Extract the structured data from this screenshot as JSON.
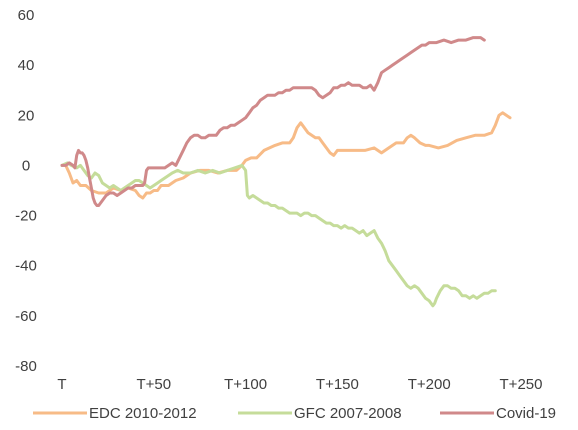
{
  "chart_data": {
    "type": "line",
    "title": "",
    "xlabel": "",
    "ylabel": "",
    "x_range": [
      0,
      250
    ],
    "x_ticks": [
      {
        "x": 0,
        "label": "T"
      },
      {
        "x": 50,
        "label": "T+50"
      },
      {
        "x": 100,
        "label": "T+100"
      },
      {
        "x": 150,
        "label": "T+150"
      },
      {
        "x": 200,
        "label": "T+200"
      },
      {
        "x": 250,
        "label": "T+250"
      }
    ],
    "ylim": [
      -80,
      60
    ],
    "y_ticks": [
      60,
      40,
      20,
      0,
      -20,
      -40,
      -60,
      -80
    ],
    "grid": false,
    "legend_position": "bottom",
    "series": [
      {
        "name": "EDC 2010-2012",
        "color": "#f7bb87",
        "points": [
          [
            0,
            0
          ],
          [
            2,
            0
          ],
          [
            4,
            -3
          ],
          [
            6,
            -7
          ],
          [
            8,
            -6
          ],
          [
            10,
            -8
          ],
          [
            13,
            -8
          ],
          [
            16,
            -10
          ],
          [
            20,
            -11
          ],
          [
            24,
            -11
          ],
          [
            28,
            -9
          ],
          [
            32,
            -10
          ],
          [
            36,
            -9
          ],
          [
            40,
            -10
          ],
          [
            42,
            -12
          ],
          [
            44,
            -13
          ],
          [
            46,
            -11
          ],
          [
            48,
            -11
          ],
          [
            50,
            -10
          ],
          [
            52,
            -10
          ],
          [
            54,
            -8
          ],
          [
            58,
            -8
          ],
          [
            62,
            -6
          ],
          [
            66,
            -5
          ],
          [
            70,
            -3
          ],
          [
            75,
            -2
          ],
          [
            80,
            -2
          ],
          [
            85,
            -3
          ],
          [
            90,
            -2
          ],
          [
            95,
            -2
          ],
          [
            98,
            0
          ],
          [
            100,
            2
          ],
          [
            103,
            3
          ],
          [
            106,
            3
          ],
          [
            110,
            6
          ],
          [
            113,
            7
          ],
          [
            116,
            8
          ],
          [
            120,
            9
          ],
          [
            124,
            9
          ],
          [
            126,
            11
          ],
          [
            128,
            15
          ],
          [
            130,
            17
          ],
          [
            132,
            15
          ],
          [
            134,
            13
          ],
          [
            136,
            12
          ],
          [
            138,
            11
          ],
          [
            140,
            11
          ],
          [
            142,
            9
          ],
          [
            144,
            7
          ],
          [
            146,
            5
          ],
          [
            148,
            4
          ],
          [
            150,
            6
          ],
          [
            155,
            6
          ],
          [
            160,
            6
          ],
          [
            165,
            6
          ],
          [
            170,
            7
          ],
          [
            174,
            5
          ],
          [
            178,
            7
          ],
          [
            182,
            9
          ],
          [
            186,
            9
          ],
          [
            188,
            11
          ],
          [
            190,
            12
          ],
          [
            192,
            11
          ],
          [
            195,
            9
          ],
          [
            198,
            8
          ],
          [
            200,
            8
          ],
          [
            205,
            7
          ],
          [
            210,
            8
          ],
          [
            215,
            10
          ],
          [
            220,
            11
          ],
          [
            225,
            12
          ],
          [
            230,
            12
          ],
          [
            234,
            13
          ],
          [
            236,
            16
          ],
          [
            238,
            20
          ],
          [
            240,
            21
          ],
          [
            242,
            20
          ],
          [
            244,
            19
          ]
        ]
      },
      {
        "name": "GFC 2007-2008",
        "color": "#c5dc9a",
        "points": [
          [
            0,
            0
          ],
          [
            3,
            1
          ],
          [
            5,
            0
          ],
          [
            8,
            -1
          ],
          [
            10,
            0
          ],
          [
            12,
            -2
          ],
          [
            14,
            -4
          ],
          [
            16,
            -5
          ],
          [
            18,
            -3
          ],
          [
            20,
            -4
          ],
          [
            22,
            -7
          ],
          [
            24,
            -8
          ],
          [
            26,
            -9
          ],
          [
            28,
            -8
          ],
          [
            30,
            -9
          ],
          [
            32,
            -10
          ],
          [
            34,
            -9
          ],
          [
            36,
            -8
          ],
          [
            38,
            -7
          ],
          [
            40,
            -6
          ],
          [
            42,
            -6
          ],
          [
            44,
            -7
          ],
          [
            46,
            -8
          ],
          [
            48,
            -9
          ],
          [
            50,
            -8
          ],
          [
            52,
            -7
          ],
          [
            54,
            -6
          ],
          [
            56,
            -5
          ],
          [
            58,
            -4
          ],
          [
            60,
            -3
          ],
          [
            63,
            -2
          ],
          [
            66,
            -3
          ],
          [
            70,
            -3
          ],
          [
            74,
            -2
          ],
          [
            78,
            -3
          ],
          [
            82,
            -2
          ],
          [
            86,
            -3
          ],
          [
            90,
            -2
          ],
          [
            94,
            -1
          ],
          [
            98,
            0
          ],
          [
            100,
            -2
          ],
          [
            101,
            -12
          ],
          [
            102,
            -13
          ],
          [
            104,
            -12
          ],
          [
            106,
            -13
          ],
          [
            108,
            -14
          ],
          [
            110,
            -15
          ],
          [
            112,
            -15
          ],
          [
            114,
            -16
          ],
          [
            116,
            -16
          ],
          [
            118,
            -17
          ],
          [
            120,
            -17
          ],
          [
            122,
            -18
          ],
          [
            124,
            -19
          ],
          [
            126,
            -19
          ],
          [
            128,
            -19
          ],
          [
            130,
            -20
          ],
          [
            132,
            -19
          ],
          [
            134,
            -19
          ],
          [
            136,
            -20
          ],
          [
            138,
            -20
          ],
          [
            140,
            -21
          ],
          [
            142,
            -22
          ],
          [
            144,
            -23
          ],
          [
            146,
            -23
          ],
          [
            148,
            -24
          ],
          [
            150,
            -24
          ],
          [
            152,
            -25
          ],
          [
            154,
            -24
          ],
          [
            156,
            -25
          ],
          [
            158,
            -25
          ],
          [
            160,
            -26
          ],
          [
            162,
            -27
          ],
          [
            164,
            -26
          ],
          [
            166,
            -28
          ],
          [
            168,
            -27
          ],
          [
            170,
            -26
          ],
          [
            172,
            -29
          ],
          [
            174,
            -31
          ],
          [
            176,
            -34
          ],
          [
            178,
            -38
          ],
          [
            180,
            -40
          ],
          [
            182,
            -42
          ],
          [
            184,
            -44
          ],
          [
            186,
            -46
          ],
          [
            188,
            -48
          ],
          [
            190,
            -49
          ],
          [
            192,
            -48
          ],
          [
            194,
            -49
          ],
          [
            196,
            -51
          ],
          [
            198,
            -53
          ],
          [
            200,
            -54
          ],
          [
            202,
            -56
          ],
          [
            203,
            -55
          ],
          [
            204,
            -53
          ],
          [
            206,
            -50
          ],
          [
            208,
            -48
          ],
          [
            210,
            -48
          ],
          [
            212,
            -49
          ],
          [
            214,
            -49
          ],
          [
            216,
            -50
          ],
          [
            218,
            -52
          ],
          [
            220,
            -52
          ],
          [
            222,
            -53
          ],
          [
            224,
            -52
          ],
          [
            226,
            -53
          ],
          [
            228,
            -52
          ],
          [
            230,
            -51
          ],
          [
            232,
            -51
          ],
          [
            234,
            -50
          ],
          [
            236,
            -50
          ]
        ]
      },
      {
        "name": "Covid-19",
        "color": "#d0898a",
        "points": [
          [
            0,
            0
          ],
          [
            2,
            0
          ],
          [
            4,
            1
          ],
          [
            6,
            0
          ],
          [
            7,
            -1
          ],
          [
            8,
            4
          ],
          [
            9,
            6
          ],
          [
            10,
            5
          ],
          [
            11,
            5
          ],
          [
            12,
            4
          ],
          [
            13,
            2
          ],
          [
            14,
            -1
          ],
          [
            15,
            -5
          ],
          [
            16,
            -9
          ],
          [
            17,
            -13
          ],
          [
            18,
            -15
          ],
          [
            19,
            -16
          ],
          [
            20,
            -16
          ],
          [
            22,
            -14
          ],
          [
            24,
            -12
          ],
          [
            26,
            -11
          ],
          [
            28,
            -11
          ],
          [
            30,
            -12
          ],
          [
            32,
            -11
          ],
          [
            34,
            -10
          ],
          [
            36,
            -9
          ],
          [
            38,
            -9
          ],
          [
            40,
            -8
          ],
          [
            42,
            -8
          ],
          [
            44,
            -8
          ],
          [
            45,
            -7
          ],
          [
            46,
            -2
          ],
          [
            47,
            -1
          ],
          [
            48,
            -1
          ],
          [
            50,
            -1
          ],
          [
            52,
            -1
          ],
          [
            54,
            -1
          ],
          [
            56,
            -1
          ],
          [
            58,
            0
          ],
          [
            60,
            1
          ],
          [
            62,
            0
          ],
          [
            64,
            3
          ],
          [
            66,
            6
          ],
          [
            68,
            9
          ],
          [
            70,
            11
          ],
          [
            72,
            12
          ],
          [
            74,
            12
          ],
          [
            76,
            11
          ],
          [
            78,
            11
          ],
          [
            80,
            12
          ],
          [
            82,
            12
          ],
          [
            84,
            12
          ],
          [
            86,
            14
          ],
          [
            88,
            15
          ],
          [
            90,
            15
          ],
          [
            92,
            16
          ],
          [
            94,
            16
          ],
          [
            96,
            17
          ],
          [
            98,
            18
          ],
          [
            100,
            19
          ],
          [
            102,
            21
          ],
          [
            104,
            23
          ],
          [
            106,
            24
          ],
          [
            108,
            26
          ],
          [
            110,
            27
          ],
          [
            112,
            28
          ],
          [
            114,
            28
          ],
          [
            116,
            28
          ],
          [
            118,
            29
          ],
          [
            120,
            29
          ],
          [
            122,
            30
          ],
          [
            124,
            30
          ],
          [
            126,
            31
          ],
          [
            128,
            31
          ],
          [
            130,
            31
          ],
          [
            132,
            31
          ],
          [
            134,
            31
          ],
          [
            136,
            31
          ],
          [
            138,
            30
          ],
          [
            140,
            28
          ],
          [
            142,
            27
          ],
          [
            144,
            28
          ],
          [
            146,
            29
          ],
          [
            148,
            31
          ],
          [
            150,
            31
          ],
          [
            152,
            32
          ],
          [
            154,
            32
          ],
          [
            156,
            33
          ],
          [
            158,
            32
          ],
          [
            160,
            32
          ],
          [
            162,
            32
          ],
          [
            164,
            31
          ],
          [
            166,
            31
          ],
          [
            168,
            32
          ],
          [
            170,
            30
          ],
          [
            172,
            33
          ],
          [
            174,
            37
          ],
          [
            176,
            38
          ],
          [
            178,
            39
          ],
          [
            180,
            40
          ],
          [
            182,
            41
          ],
          [
            184,
            42
          ],
          [
            186,
            43
          ],
          [
            188,
            44
          ],
          [
            190,
            45
          ],
          [
            192,
            46
          ],
          [
            194,
            47
          ],
          [
            196,
            48
          ],
          [
            198,
            48
          ],
          [
            200,
            49
          ],
          [
            204,
            49
          ],
          [
            208,
            50
          ],
          [
            212,
            49
          ],
          [
            216,
            50
          ],
          [
            220,
            50
          ],
          [
            224,
            51
          ],
          [
            228,
            51
          ],
          [
            230,
            50
          ]
        ]
      }
    ]
  }
}
